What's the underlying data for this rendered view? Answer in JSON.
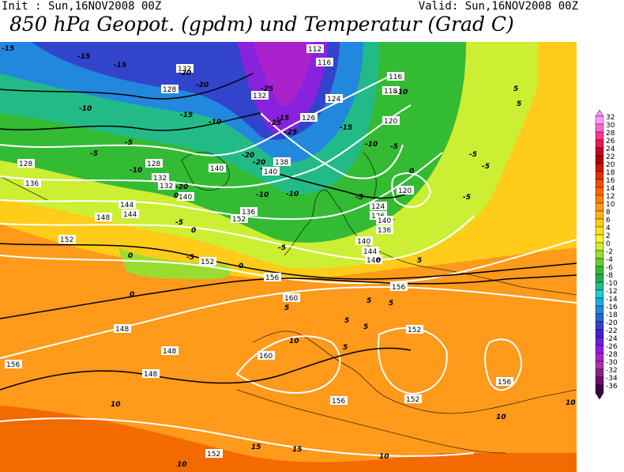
{
  "header": {
    "init": "Init : Sun,16NOV2008 00Z",
    "valid": "Valid: Sun,16NOV2008 00Z",
    "title": "850 hPa Geopot. (gpdm) und Temperatur (Grad C)"
  },
  "legend": {
    "labels": [
      "32",
      "30",
      "28",
      "26",
      "24",
      "22",
      "20",
      "18",
      "16",
      "14",
      "12",
      "10",
      "8",
      "6",
      "4",
      "2",
      "0",
      "-2",
      "-4",
      "-6",
      "-8",
      "-10",
      "-12",
      "-14",
      "-16",
      "-18",
      "-20",
      "-22",
      "-24",
      "-26",
      "-28",
      "-30",
      "-32",
      "-34",
      "-36"
    ],
    "colors": {
      "32": "#ff99ff",
      "30": "#ff66cc",
      "28": "#ff3399",
      "26": "#e6194b",
      "24": "#cc0022",
      "22": "#b30000",
      "20": "#cc1a00",
      "18": "#e62e00",
      "16": "#f24d00",
      "14": "#ff6600",
      "12": "#ff8000",
      "10": "#ff9a1a",
      "8": "#ffb31a",
      "6": "#ffcc1a",
      "4": "#ffe01a",
      "2": "#fff033",
      "0": "#ccee33",
      "-2": "#99dd33",
      "-4": "#66cc33",
      "-6": "#33bb33",
      "-8": "#22aa55",
      "-10": "#22bb88",
      "-12": "#22cccc",
      "-14": "#22aadd",
      "-16": "#2288dd",
      "-18": "#2266cc",
      "-20": "#3344cc",
      "-22": "#4422cc",
      "-24": "#6622dd",
      "-26": "#8822dd",
      "-28": "#aa22cc",
      "-30": "#aa33aa",
      "-32": "#882288",
      "-34": "#661166",
      "-36": "#440044"
    }
  },
  "map": {
    "geopotential_labels": [
      "112",
      "116",
      "116",
      "118",
      "120",
      "120",
      "124",
      "124",
      "126",
      "126",
      "128",
      "128",
      "128",
      "132",
      "132",
      "132",
      "132",
      "136",
      "136",
      "136",
      "138",
      "140",
      "140",
      "140",
      "140",
      "140",
      "144",
      "144",
      "144",
      "146",
      "148",
      "148",
      "148",
      "148",
      "152",
      "152",
      "152",
      "152",
      "152",
      "152",
      "156",
      "156",
      "156",
      "156",
      "156",
      "160",
      "160"
    ],
    "temperature_labels": [
      "-25",
      "-25",
      "-25",
      "-20",
      "-20",
      "-20",
      "-20",
      "-20",
      "-15",
      "-15",
      "-15",
      "-15",
      "-15",
      "-15",
      "-10",
      "-10",
      "-10",
      "-10",
      "-10",
      "-10",
      "-10",
      "-5",
      "-5",
      "-5",
      "-5",
      "-5",
      "-5",
      "-5",
      "-5",
      "-5",
      "-5",
      "0",
      "0",
      "0",
      "0",
      "0",
      "0",
      "0",
      "5",
      "5",
      "5",
      "5",
      "5",
      "5",
      "5",
      "5",
      "5",
      "10",
      "10",
      "10",
      "10",
      "10",
      "10",
      "15",
      "15"
    ]
  }
}
